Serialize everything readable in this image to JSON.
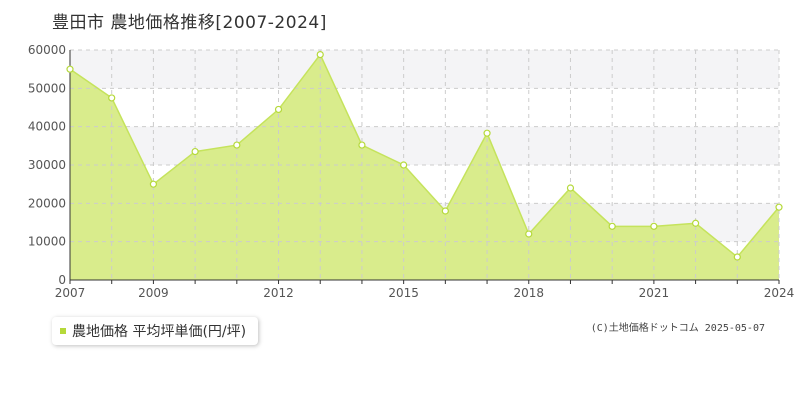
{
  "header": {
    "title": "豊田市 農地価格推移[2007-2024]"
  },
  "legend": {
    "label": "農地価格 平均坪単価(円/坪)"
  },
  "footer": {
    "copyright": "(C)土地価格ドットコム 2025-05-07"
  },
  "colors": {
    "area_fill": "#d9ec8c",
    "line": "#c5e35c",
    "marker_fill": "#ffffff",
    "marker_stroke": "#b5d93a",
    "grid": "#cccccc",
    "band": "#f4f4f6"
  },
  "chart_data": {
    "type": "area",
    "title": "",
    "xlabel": "",
    "ylabel": "",
    "x": [
      2007,
      2008,
      2009,
      2010,
      2011,
      2012,
      2013,
      2014,
      2015,
      2016,
      2017,
      2018,
      2019,
      2020,
      2021,
      2022,
      2023,
      2024
    ],
    "series": [
      {
        "name": "農地価格 平均坪単価(円/坪)",
        "values": [
          55000,
          47500,
          25000,
          33500,
          35200,
          44500,
          58800,
          35200,
          30000,
          18000,
          38300,
          12000,
          24000,
          14000,
          14000,
          14800,
          6000,
          19000
        ]
      }
    ],
    "ylim": [
      0,
      60000
    ],
    "yticks": [
      "0",
      "10000",
      "20000",
      "30000",
      "40000",
      "50000",
      "60000"
    ],
    "xticks": [
      "2007",
      "2009",
      "2012",
      "2015",
      "2018",
      "2021",
      "2024"
    ],
    "xlim": [
      2007,
      2024
    ],
    "grid": true,
    "legend_position": "bottom-left"
  }
}
